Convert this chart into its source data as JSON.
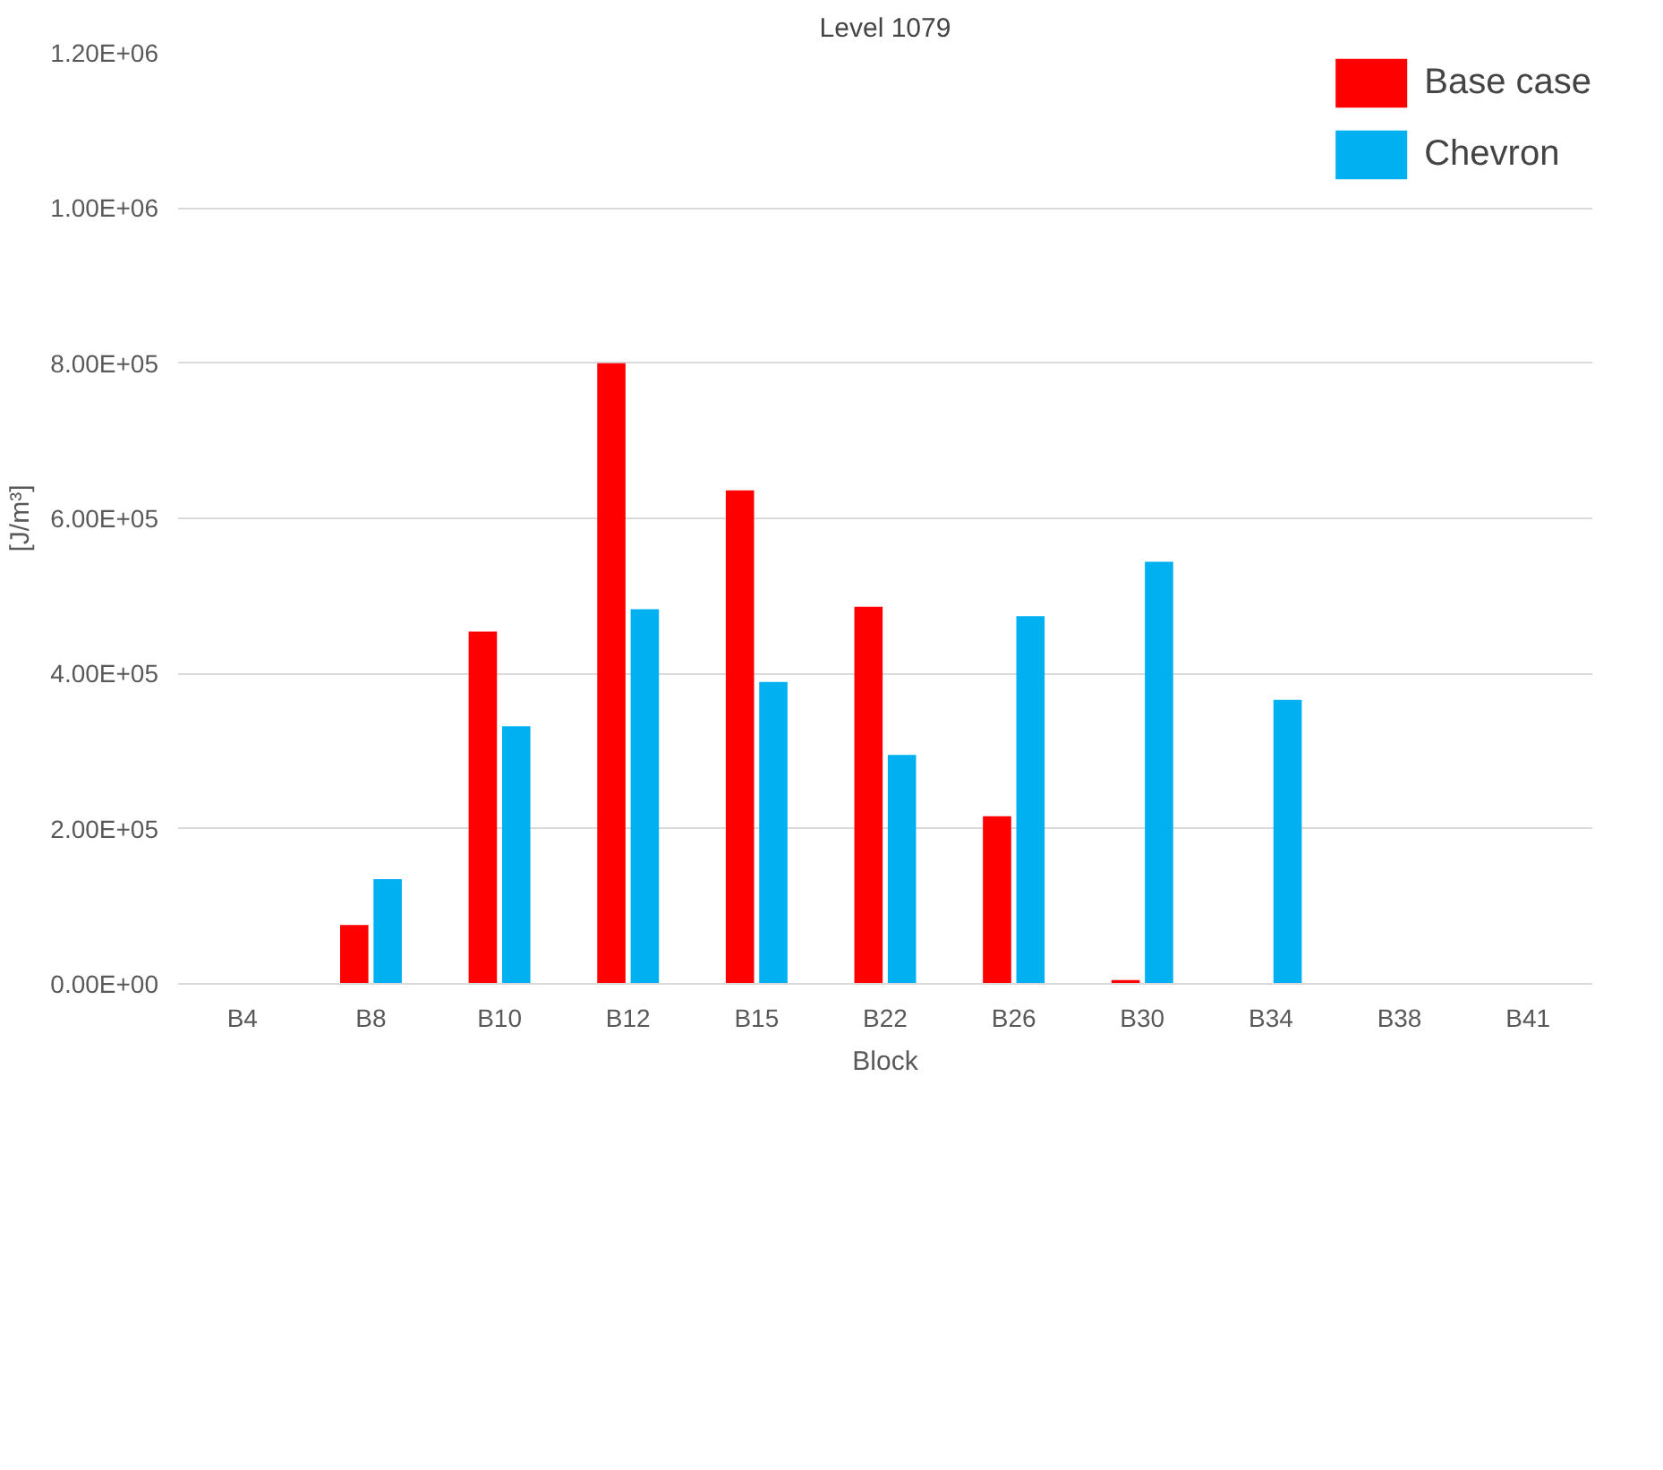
{
  "chart_data": {
    "type": "bar",
    "title": "Level 1079",
    "xlabel": "Block",
    "ylabel": "[J/m³]",
    "categories": [
      "B4",
      "B8",
      "B10",
      "B12",
      "B15",
      "B22",
      "B26",
      "B30",
      "B34",
      "B38",
      "B41"
    ],
    "series": [
      {
        "name": "Base case",
        "color": "#ff0000",
        "values": [
          0,
          76000,
          454000,
          800000,
          636000,
          486000,
          216000,
          5000,
          0,
          0,
          0
        ]
      },
      {
        "name": "Chevron",
        "color": "#00b0f0",
        "values": [
          0,
          135000,
          332000,
          483000,
          389000,
          295000,
          474000,
          544000,
          366000,
          0,
          0
        ]
      }
    ],
    "ylim": [
      0,
      1200000
    ],
    "yticks": [
      {
        "value": 0,
        "label": "0.00E+00"
      },
      {
        "value": 200000,
        "label": "2.00E+05"
      },
      {
        "value": 400000,
        "label": "4.00E+05"
      },
      {
        "value": 600000,
        "label": "6.00E+05"
      },
      {
        "value": 800000,
        "label": "8.00E+05"
      },
      {
        "value": 1000000,
        "label": "1.00E+06"
      },
      {
        "value": 1200000,
        "label": "1.20E+06"
      }
    ],
    "grid": "y",
    "legend": "top right"
  }
}
